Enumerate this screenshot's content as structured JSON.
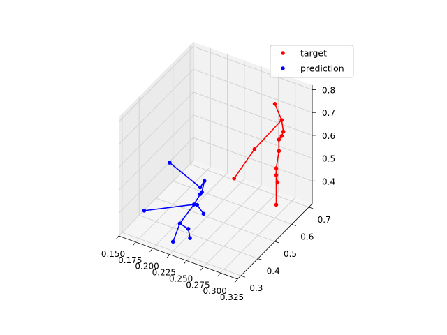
{
  "chart_data": {
    "type": "scatter",
    "projection": "3d",
    "grid": true,
    "legend_placement": "upper-right",
    "series": [
      {
        "name": "target",
        "color": "#ff0000",
        "points": [
          {
            "x": 0.29,
            "y": 0.64,
            "z": 0.76
          },
          {
            "x": 0.3,
            "y": 0.64,
            "z": 0.7
          },
          {
            "x": 0.302,
            "y": 0.642,
            "z": 0.65
          },
          {
            "x": 0.3,
            "y": 0.64,
            "z": 0.63
          },
          {
            "x": 0.296,
            "y": 0.64,
            "z": 0.61
          },
          {
            "x": 0.296,
            "y": 0.64,
            "z": 0.56
          },
          {
            "x": 0.27,
            "y": 0.6,
            "z": 0.57
          },
          {
            "x": 0.25,
            "y": 0.56,
            "z": 0.45
          },
          {
            "x": 0.292,
            "y": 0.64,
            "z": 0.48
          },
          {
            "x": 0.292,
            "y": 0.64,
            "z": 0.45
          },
          {
            "x": 0.294,
            "y": 0.64,
            "z": 0.42
          },
          {
            "x": 0.292,
            "y": 0.64,
            "z": 0.32
          }
        ],
        "edges": [
          [
            0,
            1
          ],
          [
            1,
            2
          ],
          [
            2,
            3
          ],
          [
            3,
            4
          ],
          [
            4,
            5
          ],
          [
            5,
            8
          ],
          [
            1,
            6
          ],
          [
            6,
            7
          ],
          [
            8,
            9
          ],
          [
            9,
            10
          ],
          [
            8,
            11
          ]
        ]
      },
      {
        "name": "prediction",
        "color": "#0000ff",
        "points": [
          {
            "x": 0.2,
            "y": 0.38,
            "z": 0.6
          },
          {
            "x": 0.24,
            "y": 0.4,
            "z": 0.52
          },
          {
            "x": 0.245,
            "y": 0.405,
            "z": 0.55
          },
          {
            "x": 0.242,
            "y": 0.402,
            "z": 0.5
          },
          {
            "x": 0.24,
            "y": 0.4,
            "z": 0.49
          },
          {
            "x": 0.232,
            "y": 0.395,
            "z": 0.44
          },
          {
            "x": 0.236,
            "y": 0.398,
            "z": 0.44
          },
          {
            "x": 0.245,
            "y": 0.4,
            "z": 0.41
          },
          {
            "x": 0.175,
            "y": 0.33,
            "z": 0.4
          },
          {
            "x": 0.22,
            "y": 0.36,
            "z": 0.37
          },
          {
            "x": 0.23,
            "y": 0.37,
            "z": 0.35
          },
          {
            "x": 0.232,
            "y": 0.372,
            "z": 0.31
          },
          {
            "x": 0.215,
            "y": 0.34,
            "z": 0.3
          }
        ],
        "edges": [
          [
            0,
            1
          ],
          [
            1,
            2
          ],
          [
            2,
            3
          ],
          [
            3,
            4
          ],
          [
            4,
            5
          ],
          [
            5,
            6
          ],
          [
            6,
            7
          ],
          [
            5,
            8
          ],
          [
            5,
            9
          ],
          [
            9,
            10
          ],
          [
            10,
            11
          ],
          [
            9,
            12
          ]
        ]
      }
    ],
    "xlim": [
      0.15,
      0.325
    ],
    "ylim": [
      0.28,
      0.72
    ],
    "zlim": [
      0.3,
      0.82
    ],
    "x_ticks": [
      "0.150",
      "0.175",
      "0.200",
      "0.225",
      "0.250",
      "0.275",
      "0.300",
      "0.325"
    ],
    "x_tick_values": [
      0.15,
      0.175,
      0.2,
      0.225,
      0.25,
      0.275,
      0.3,
      0.325
    ],
    "y_ticks": [
      "0.3",
      "0.4",
      "0.5",
      "0.6",
      "0.7"
    ],
    "y_tick_values": [
      0.3,
      0.4,
      0.5,
      0.6,
      0.7
    ],
    "z_ticks": [
      "0.4",
      "0.5",
      "0.6",
      "0.7",
      "0.8"
    ],
    "z_tick_values": [
      0.4,
      0.5,
      0.6,
      0.7,
      0.8
    ]
  }
}
